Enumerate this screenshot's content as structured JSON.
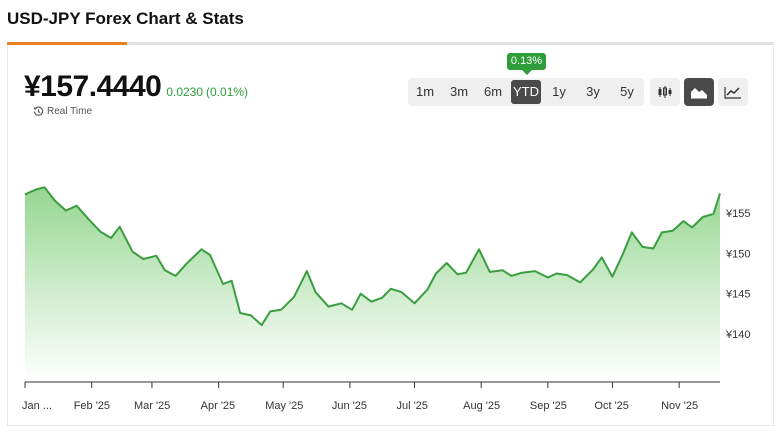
{
  "page": {
    "title": "USD-JPY Forex Chart & Stats"
  },
  "quote": {
    "price": "¥157.4440",
    "change": "0.0230",
    "change_pct": "(0.01%)",
    "realtime_label": "Real Time"
  },
  "range": {
    "options": [
      "1m",
      "3m",
      "6m",
      "YTD",
      "1y",
      "3y",
      "5y"
    ],
    "selected": "YTD",
    "badge": "0.13%"
  },
  "chart_type_buttons": [
    {
      "icon": "candlestick-icon",
      "active": false
    },
    {
      "icon": "area-chart-icon",
      "active": true
    },
    {
      "icon": "line-chart-icon",
      "active": false
    }
  ],
  "colors": {
    "line": "#3a9d3f",
    "fill_top": "#8fd48a",
    "up": "#2e9d3a",
    "accent": "#e8821f",
    "active_button": "#4a4a4a"
  },
  "chart_data": {
    "type": "area",
    "x": [
      "2025-01-01",
      "2025-01-06",
      "2025-01-10",
      "2025-01-15",
      "2025-01-20",
      "2025-01-25",
      "2025-01-31",
      "2025-02-05",
      "2025-02-10",
      "2025-02-14",
      "2025-02-20",
      "2025-02-25",
      "2025-03-03",
      "2025-03-07",
      "2025-03-12",
      "2025-03-17",
      "2025-03-24",
      "2025-03-28",
      "2025-04-03",
      "2025-04-07",
      "2025-04-11",
      "2025-04-16",
      "2025-04-21",
      "2025-04-25",
      "2025-04-30",
      "2025-05-06",
      "2025-05-12",
      "2025-05-16",
      "2025-05-22",
      "2025-05-28",
      "2025-06-02",
      "2025-06-06",
      "2025-06-11",
      "2025-06-16",
      "2025-06-20",
      "2025-06-25",
      "2025-07-01",
      "2025-07-07",
      "2025-07-11",
      "2025-07-16",
      "2025-07-21",
      "2025-07-25",
      "2025-07-31",
      "2025-08-05",
      "2025-08-11",
      "2025-08-15",
      "2025-08-20",
      "2025-08-26",
      "2025-09-01",
      "2025-09-05",
      "2025-09-10",
      "2025-09-16",
      "2025-09-22",
      "2025-09-26",
      "2025-10-01",
      "2025-10-06",
      "2025-10-10",
      "2025-10-15",
      "2025-10-20",
      "2025-10-24",
      "2025-10-29",
      "2025-11-03",
      "2025-11-07",
      "2025-11-12",
      "2025-11-17",
      "2025-11-20"
    ],
    "y": [
      157.3,
      157.9,
      158.2,
      156.5,
      155.3,
      155.9,
      154.1,
      152.7,
      151.9,
      153.3,
      150.2,
      149.3,
      149.7,
      147.9,
      147.2,
      148.7,
      150.5,
      149.8,
      146.2,
      146.6,
      142.6,
      142.3,
      141.1,
      142.8,
      143.0,
      144.6,
      147.8,
      145.2,
      143.4,
      143.8,
      143.0,
      145.0,
      144.0,
      144.5,
      145.6,
      145.2,
      143.8,
      145.5,
      147.5,
      148.8,
      147.4,
      147.6,
      150.5,
      147.7,
      147.9,
      147.2,
      147.6,
      147.8,
      147.0,
      147.5,
      147.3,
      146.4,
      148.0,
      149.5,
      147.1,
      150.0,
      152.6,
      150.8,
      150.6,
      152.6,
      152.8,
      154.0,
      153.2,
      154.5,
      154.9,
      157.4
    ],
    "x_ticks": [
      "Jan ...",
      "Feb '25",
      "Mar '25",
      "Apr '25",
      "May '25",
      "Jun '25",
      "Jul '25",
      "Aug '25",
      "Sep '25",
      "Oct '25",
      "Nov '25"
    ],
    "y_ticks": [
      155,
      150,
      145,
      140
    ],
    "y_tick_labels": [
      "¥155",
      "¥150",
      "¥145",
      "¥140"
    ],
    "ylim": [
      136,
      165
    ],
    "grid": false
  }
}
